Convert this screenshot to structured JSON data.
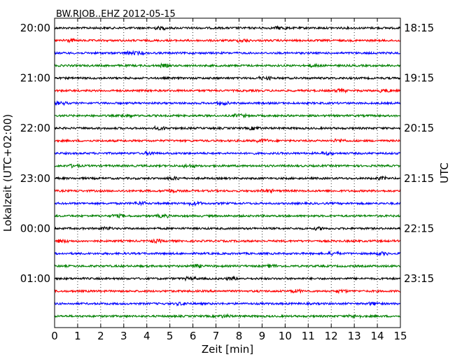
{
  "chart_data": {
    "type": "line",
    "title": "BW.RJOB..EHZ 2012-05-15",
    "xlabel": "Zeit  [min]",
    "ylabel_left": "Lokalzeit (UTC+02:00)",
    "ylabel_right": "UTC",
    "xlim": [
      0,
      15
    ],
    "x_ticks": [
      "0",
      "1",
      "2",
      "3",
      "4",
      "5",
      "6",
      "7",
      "8",
      "9",
      "10",
      "11",
      "12",
      "13",
      "14",
      "15"
    ],
    "left_ticks": [
      "20:00",
      "21:00",
      "22:00",
      "23:00",
      "00:00",
      "01:00"
    ],
    "right_ticks": [
      "18:15",
      "19:15",
      "20:15",
      "21:15",
      "22:15",
      "23:15"
    ],
    "trace_count": 24,
    "trace_interval_min": 15,
    "trace_colors": [
      "#000000",
      "#ff0000",
      "#0000ff",
      "#008000"
    ],
    "grid": "vertical-dotted"
  }
}
